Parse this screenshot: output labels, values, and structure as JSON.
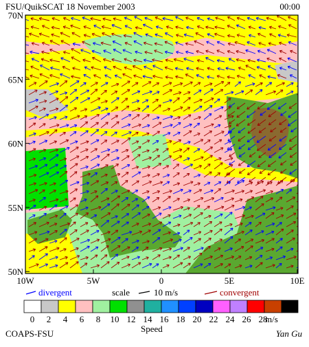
{
  "header": {
    "title": "FSU/QuikSCAT 18 November 2003",
    "time": "00:00"
  },
  "map": {
    "lat_labels": [
      "70N",
      "65N",
      "60N",
      "55N",
      "50N"
    ],
    "lon_labels": [
      "10W",
      "5W",
      "0",
      "5E",
      "10E"
    ]
  },
  "legend": {
    "divergent": "divergent",
    "scale": "scale",
    "scale_value": "10 m/s",
    "convergent": "convergent"
  },
  "colorbar": {
    "labels": [
      "0",
      "2",
      "4",
      "6",
      "8",
      "10",
      "12",
      "14",
      "16",
      "18",
      "20",
      "22",
      "24",
      "26",
      "28"
    ],
    "colors": [
      "#ffffff",
      "#c8c8c8",
      "#ffff00",
      "#ffc0c0",
      "#a0f0a0",
      "#00e000",
      "#909090",
      "#20b0a0",
      "#2090ff",
      "#0040ff",
      "#0000c0",
      "#ff60ff",
      "#c080ff",
      "#ff0000",
      "#c84000"
    ],
    "last_color": "#000000",
    "unit": "m/s",
    "title": "Speed"
  },
  "footer": {
    "left": "COAPS-FSU",
    "right": "Yan Gu"
  }
}
